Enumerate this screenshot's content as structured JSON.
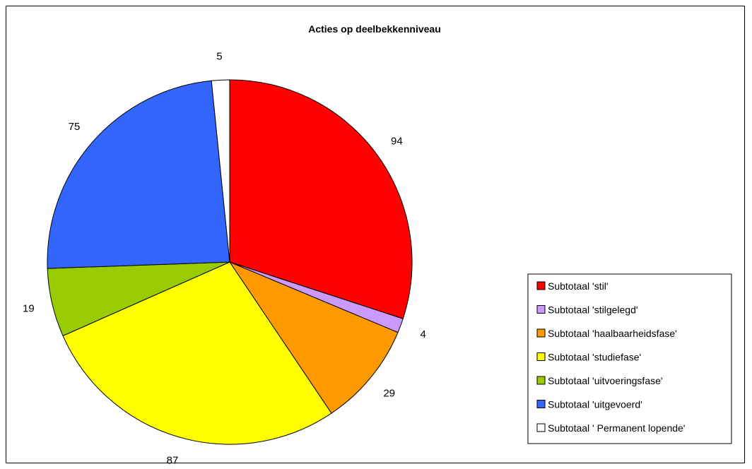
{
  "chart_data": {
    "type": "pie",
    "title": "Acties op deelbekkenniveau",
    "legend_position": "right",
    "slices": [
      {
        "name": "Subtotaal 'stil'",
        "value": 94,
        "color": "#ff0000"
      },
      {
        "name": "Subtotaal 'stilgelegd'",
        "value": 4,
        "color": "#cc99ff"
      },
      {
        "name": "Subtotaal 'haalbaarheidsfase'",
        "value": 29,
        "color": "#ff9900"
      },
      {
        "name": "Subtotaal 'studiefase'",
        "value": 87,
        "color": "#ffff00"
      },
      {
        "name": "Subtotaal 'uitvoeringsfase'",
        "value": 19,
        "color": "#99cc00"
      },
      {
        "name": "Subtotaal 'uitgevoerd'",
        "value": 75,
        "color": "#3366ff"
      },
      {
        "name": "Subtotaal ' Permanent lopende'",
        "value": 5,
        "color": "#ffffff"
      }
    ]
  }
}
